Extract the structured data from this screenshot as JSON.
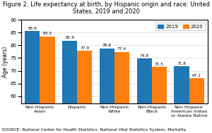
{
  "chart_data": {
    "type": "bar",
    "title": "Figure 2. Life expectancy at birth, by Hispanic origin and race: United States, 2019 and 2020",
    "categories": [
      "Non-Hispanic Asian",
      "Hispanic",
      "Non-Hispanic White",
      "Non-Hispanic Black",
      "Non-Hispanic American\nIndian or Alaska Native"
    ],
    "series": [
      {
        "name": "2019",
        "values": [
          85.6,
          81.9,
          78.8,
          74.8,
          71.8
        ]
      },
      {
        "name": "2020",
        "values": [
          83.5,
          77.9,
          77.4,
          71.5,
          67.1
        ]
      }
    ],
    "y_label": "Age (years)",
    "ylim": [
      57,
      90
    ],
    "yticks": [
      60,
      65,
      70,
      75,
      80,
      85,
      90
    ],
    "annotations": [
      "SOURCE: National Center for Health Statistics, National Vital Statistics System, Mortality."
    ],
    "grid": true,
    "legend": "upper right",
    "data_labels": true
  }
}
